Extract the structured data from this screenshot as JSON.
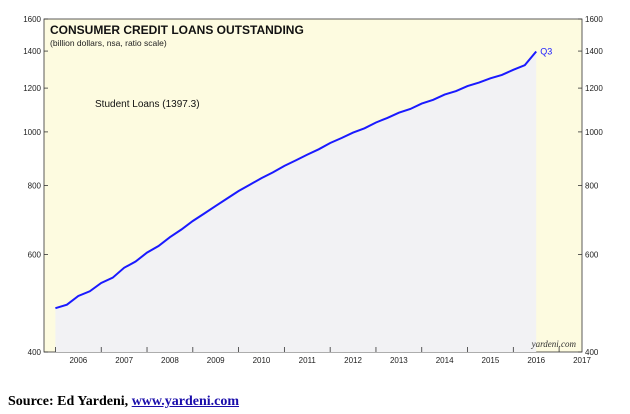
{
  "chart_data": {
    "type": "line",
    "title": "CONSUMER CREDIT LOANS OUTSTANDING",
    "subtitle": "(billion dollars, nsa, ratio scale)",
    "scale": "log",
    "ylim": [
      400,
      1600
    ],
    "xlim": [
      2005.75,
      2017.5
    ],
    "y_ticks": [
      400,
      600,
      800,
      1000,
      1200,
      1400,
      1600
    ],
    "x_ticks": [
      "2006",
      "2007",
      "2008",
      "2009",
      "2010",
      "2011",
      "2012",
      "2013",
      "2014",
      "2015",
      "2016",
      "2017"
    ],
    "grid": false,
    "background_color": "#fdfbe0",
    "area_color": "#f2f2f4",
    "line_color": "#1a1aff",
    "series": [
      {
        "name": "Student Loans (1397.3)",
        "end_label": "Q3",
        "x": [
          2006.0,
          2006.25,
          2006.5,
          2006.75,
          2007.0,
          2007.25,
          2007.5,
          2007.75,
          2008.0,
          2008.25,
          2008.5,
          2008.75,
          2009.0,
          2009.25,
          2009.5,
          2009.75,
          2010.0,
          2010.25,
          2010.5,
          2010.75,
          2011.0,
          2011.25,
          2011.5,
          2011.75,
          2012.0,
          2012.25,
          2012.5,
          2012.75,
          2013.0,
          2013.25,
          2013.5,
          2013.75,
          2014.0,
          2014.25,
          2014.5,
          2014.75,
          2015.0,
          2015.25,
          2015.5,
          2015.75,
          2016.0,
          2016.25,
          2016.5
        ],
        "values": [
          480,
          487,
          505,
          515,
          533,
          545,
          568,
          583,
          605,
          622,
          645,
          666,
          690,
          712,
          735,
          758,
          782,
          803,
          825,
          845,
          868,
          888,
          910,
          930,
          955,
          975,
          997,
          1015,
          1040,
          1060,
          1083,
          1100,
          1125,
          1143,
          1168,
          1185,
          1210,
          1228,
          1250,
          1268,
          1295,
          1320,
          1397.3
        ]
      }
    ]
  },
  "watermark": "yardeni.com",
  "source": {
    "prefix": "Source: Ed Yardeni, ",
    "link_text": "www.yardeni.com"
  }
}
